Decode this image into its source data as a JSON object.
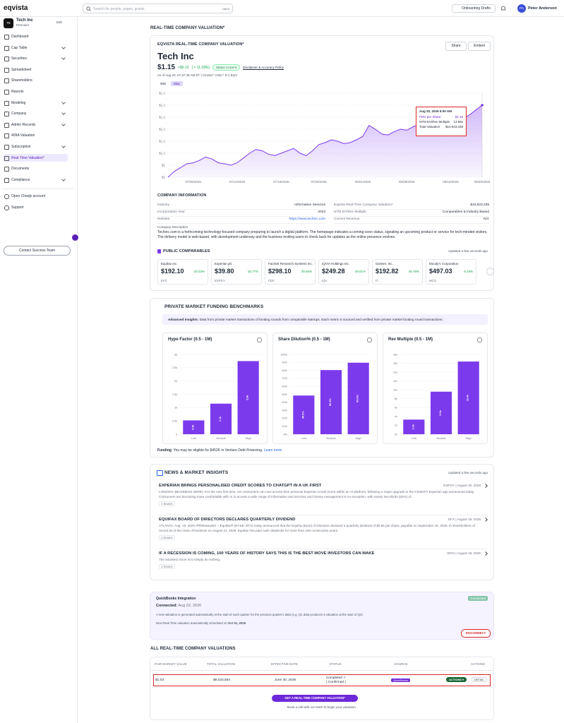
{
  "topbar": {
    "logo": "eqvista",
    "search": "Search for people, pages, grants",
    "shortcut": "Ctrl K",
    "drafts": "Onboarding Drafts",
    "user_initials": "PA",
    "user": "Peter Anderson"
  },
  "sidebar": {
    "badge": "TE",
    "company": "Tech Inc",
    "plan": "Premium",
    "edit": "Edit",
    "nav": [
      "Dashboard",
      "Cap Table",
      "Securities",
      "Spreadsheet",
      "Shareholders",
      "Reports",
      "Modeling",
      "Company",
      "Admin Records",
      "409A Valuation",
      "Subscription",
      "Real-Time Valuation*",
      "Documents",
      "Compliance"
    ],
    "nav2": [
      "Open Cheqly account",
      "Support"
    ],
    "contact": "Contact Success Team"
  },
  "page_title": "REAL-TIME COMPANY VALUATION*",
  "valuation": {
    "label": "EQVISTA REAL-TIME COMPANY VALUATION*",
    "share": "Share",
    "embed": "Embed",
    "company": "Tech Inc",
    "price": "$1.15",
    "change": "+$0.12",
    "change_pct": "(↗ 11.18%)",
    "status": "Status Current",
    "disclaimer": "Disclaimer & Accuracy Policy",
    "asof": "As of Aug 20, 07:47:49 AM ET | Closed * USD * 9-1 EQV",
    "ranges": [
      "90D",
      "Max"
    ],
    "tooltip": {
      "date": "Aug 20, 2026 5:00 AM",
      "rows": [
        [
          "FMV per Share",
          "$1.15"
        ],
        [
          "NTM EV/Rev Multiple",
          "13.89x"
        ],
        [
          "Total Valuation",
          "$10,923,339"
        ]
      ]
    }
  },
  "chart_data": [
    {
      "type": "line",
      "color": "#7c3aed",
      "grid": true,
      "categories": [
        null,
        null,
        null,
        null,
        "07/05/2026",
        null,
        null,
        null,
        null,
        null,
        null,
        "07/12/2026",
        null,
        null,
        null,
        null,
        null,
        null,
        "07/19/2026",
        null,
        null,
        null,
        null,
        null,
        "07/25/2026",
        null,
        null,
        null,
        null,
        null,
        null,
        "08/01/2026",
        null,
        null,
        null,
        null,
        null,
        null,
        "08/08/2026",
        null,
        null,
        null,
        null,
        null,
        null,
        "08/15/2026",
        null,
        null,
        null,
        null,
        "08/20/2026"
      ],
      "values": [
        1.0,
        1.012,
        1.02,
        1.028,
        1.03,
        1.035,
        1.042,
        1.038,
        1.03,
        1.028,
        1.025,
        1.03,
        1.04,
        1.05,
        1.058,
        1.055,
        1.048,
        1.045,
        1.05,
        1.055,
        1.06,
        1.05,
        1.045,
        1.055,
        1.068,
        1.072,
        1.078,
        1.075,
        1.07,
        1.072,
        1.078,
        1.085,
        1.108,
        1.1,
        1.09,
        1.088,
        1.095,
        1.1,
        1.098,
        1.105,
        1.11,
        1.108,
        1.112,
        1.115,
        1.11,
        1.118,
        1.12,
        1.122,
        1.13,
        1.14,
        1.15
      ],
      "ylim": [
        1.0,
        1.175
      ],
      "yticks": [
        {
          "value": 1.0,
          "label": "$1"
        },
        {
          "value": 1.025,
          "label": "$1"
        },
        {
          "value": 1.05,
          "label": "$1.1"
        },
        {
          "value": 1.075,
          "label": "$1.1"
        },
        {
          "value": 1.1,
          "label": "$1.1"
        },
        {
          "value": 1.125,
          "label": "$1.1"
        },
        {
          "value": 1.15,
          "label": "$1.1"
        },
        {
          "value": 1.175,
          "label": "$1.2"
        }
      ]
    },
    {
      "type": "bar",
      "title": "Hype Factor (0.5 - 1M)",
      "color": "#7c3aed",
      "grid": true,
      "categories": [
        "Low",
        "Normal",
        "High"
      ],
      "values": [
        520,
        1150,
        2750
      ],
      "value_labels": [
        "0.5k",
        "1.1k",
        "2.8k"
      ],
      "ylim": [
        0,
        3000
      ],
      "yticks": [
        0,
        {
          "value": 500,
          "label": "0.5k"
        },
        {
          "value": 1000,
          "label": "1k"
        },
        {
          "value": 1500,
          "label": "1.5k"
        },
        {
          "value": 2000,
          "label": "2k"
        },
        {
          "value": 2500,
          "label": "2.5k"
        },
        {
          "value": 3000,
          "label": "3k"
        }
      ]
    },
    {
      "type": "bar",
      "title": "Share Dilution% (0.5 - 1M)",
      "color": "#7c3aed",
      "grid": true,
      "categories": [
        "Low",
        "Normal",
        "High"
      ],
      "values": [
        48.5,
        80.4,
        89.6
      ],
      "value_labels": [
        "48.5%",
        "80.4%",
        "89.6%"
      ],
      "ylim": [
        0,
        100
      ],
      "yticks": [
        {
          "value": 0,
          "label": "0%"
        },
        {
          "value": 10,
          "label": "10%"
        },
        {
          "value": 20,
          "label": "20%"
        },
        {
          "value": 30,
          "label": "30%"
        },
        {
          "value": 40,
          "label": "40%"
        },
        {
          "value": 50,
          "label": "50%"
        },
        {
          "value": 60,
          "label": "60%"
        },
        {
          "value": 70,
          "label": "70%"
        },
        {
          "value": 80,
          "label": "80%"
        },
        {
          "value": 90,
          "label": "90%"
        },
        {
          "value": 100,
          "label": "100%"
        }
      ]
    },
    {
      "type": "bar",
      "title": "Rev Multiple (0.5 - 1M)",
      "color": "#7c3aed",
      "grid": true,
      "categories": [
        "Low",
        "Normal",
        "High"
      ],
      "values": [
        3.3,
        9.6,
        16.4
      ],
      "value_labels": [
        "3.3x",
        "9.6x",
        "16.4x"
      ],
      "ylim": [
        0,
        18
      ],
      "yticks": [
        {
          "value": 0,
          "label": "0x"
        },
        {
          "value": 2,
          "label": "2x"
        },
        {
          "value": 4,
          "label": "4x"
        },
        {
          "value": 6,
          "label": "6x"
        },
        {
          "value": 8,
          "label": "8x"
        },
        {
          "value": 10,
          "label": "10x"
        },
        {
          "value": 12,
          "label": "12x"
        },
        {
          "value": 14,
          "label": "14x"
        },
        {
          "value": 16,
          "label": "16x"
        },
        {
          "value": 18,
          "label": "18x"
        }
      ]
    }
  ],
  "company_info": {
    "title": "COMPANY INFORMATION",
    "left": [
      [
        "Industry",
        "Information Services"
      ],
      [
        "Incorporation Year",
        "2023"
      ],
      [
        "Website",
        "https://www.techinc.com"
      ]
    ],
    "right": [
      [
        "Eqvista Real-Time Company Valuation*",
        "$10,923,339"
      ],
      [
        "NTM EV/Rev Multiple",
        "Comparables & Industry Based"
      ],
      [
        "Current Revenue",
        "N/A"
      ]
    ],
    "desc_label": "Company Description",
    "desc": "Techinc.com is a forthcoming technology-focused company preparing to launch a digital platform. The homepage indicates a coming-soon status, signaling an upcoming product or service for tech-minded visitors. The delivery model is web-based, with development underway and the business inviting users to check back for updates as the online presence evolves."
  },
  "comparables": {
    "title": "PUBLIC COMPARABLES",
    "updated": "Updated a few seconds ago",
    "items": [
      {
        "name": "Equifax Inc.",
        "price": "$192.10",
        "change": "20.03%",
        "ticker": "EFX"
      },
      {
        "name": "Experian plc",
        "price": "$39.80",
        "change": "18.77%",
        "ticker": "EXPGY"
      },
      {
        "name": "FactSet Research Systems Inc.",
        "price": "$298.10",
        "change": "29.56%",
        "ticker": "FDS"
      },
      {
        "name": "IQVIA Holdings Inc.",
        "price": "$249.28",
        "change": "29.01%",
        "ticker": "IQV"
      },
      {
        "name": "Gartner, Inc.",
        "price": "$192.82",
        "change": "48.76%",
        "ticker": "IT"
      },
      {
        "name": "Moody's Corporation",
        "price": "$497.03",
        "change": "8.19%",
        "ticker": "MCO"
      }
    ]
  },
  "benchmarks": {
    "title": "PRIVATE MARKET FUNDING BENCHMARKS",
    "insight_label": "Advanced Insights:",
    "insight": "Data from private market transactions of funding rounds from comparable startups. Each metric is sourced and verified from private market funding round transactions.",
    "funding_label": "Funding:",
    "funding": "You may be eligible for $452K in Venture Debt Financing.",
    "learn": "Learn more"
  },
  "news": {
    "title": "NEWS & MARKET INSIGHTS",
    "updated": "Updated a few seconds ago",
    "items": [
      {
        "headline": "EXPERIAN BRINGS PERSONALISED CREDIT SCORES TO CHATGPT IN A UK FIRST",
        "source": "EXPGY | August 20, 2026",
        "body": "LONDON--(BUSINESS WIRE)--For the very first time, UK consumers can now access their personal Experian Credit Score within an AI platform, following a major upgrade to the ChatGPT Experian app announced today. Consumers are becoming more comfortable with AI to access a wide range of information and services and money management is no exception, with nearly two-thirds (62%) of...",
        "tag": "1 Source"
      },
      {
        "headline": "EQUIFAX BOARD OF DIRECTORS DECLARES QUARTERLY DIVIDEND",
        "source": "EFX | August 19, 2026",
        "body": "ATLANTA, Aug. 19, 2026 /PRNewswire/ -- Equifax® (NYSE: EFX) today announced that the Equifax Board of Directors declared a quarterly dividend of $0.56 per share, payable on September 15, 2026, to shareholders of record as of the close of business on August 31, 2026. Equifax has paid cash dividends for more than 100 consecutive years.",
        "tag": "1 Source"
      },
      {
        "headline": "IF A RECESSION IS COMING, 100 YEARS OF HISTORY SAYS THIS IS THE BEST MOVE INVESTORS CAN MAKE",
        "source": "SPGI | August 19, 2026",
        "body": "The smartest move is to simply do nothing.",
        "tag": "1 Source"
      }
    ]
  },
  "quickbooks": {
    "title": "QuickBooks Integration",
    "badge": "Connected",
    "connected_label": "Connected:",
    "connected_date": "Aug 02, 2026",
    "text": "A new valuation is generated automatically at the start of each quarter for the previous quarter's data (e.g. Q1 data produces a valuation at the start of Q2).",
    "next_label": "Next Real Time valuation automatically scheduled on",
    "next_date": "Oct 01, 2026",
    "disconnect": "DISCONNECT"
  },
  "table": {
    "title": "ALL REAL-TIME COMPANY VALUATIONS",
    "headers": [
      "FAIR MARKET VALUE",
      "TOTAL VALUATION",
      "EFFECTIVE DATE",
      "STATUS",
      "SOURCE",
      "ACTIONS"
    ],
    "rows": [
      [
        "$1.03",
        "$9,033,584",
        "June 30, 2026",
        "Completed ✓",
        "( Confirmed )",
        "QuickBooks"
      ]
    ],
    "actions": "ACTIONS ▾",
    "detail": "DETAIL",
    "cta": "GET A REAL-TIME COMPANY VALUATION*",
    "cta_note": "Book a call with our team to begin your valuation."
  }
}
